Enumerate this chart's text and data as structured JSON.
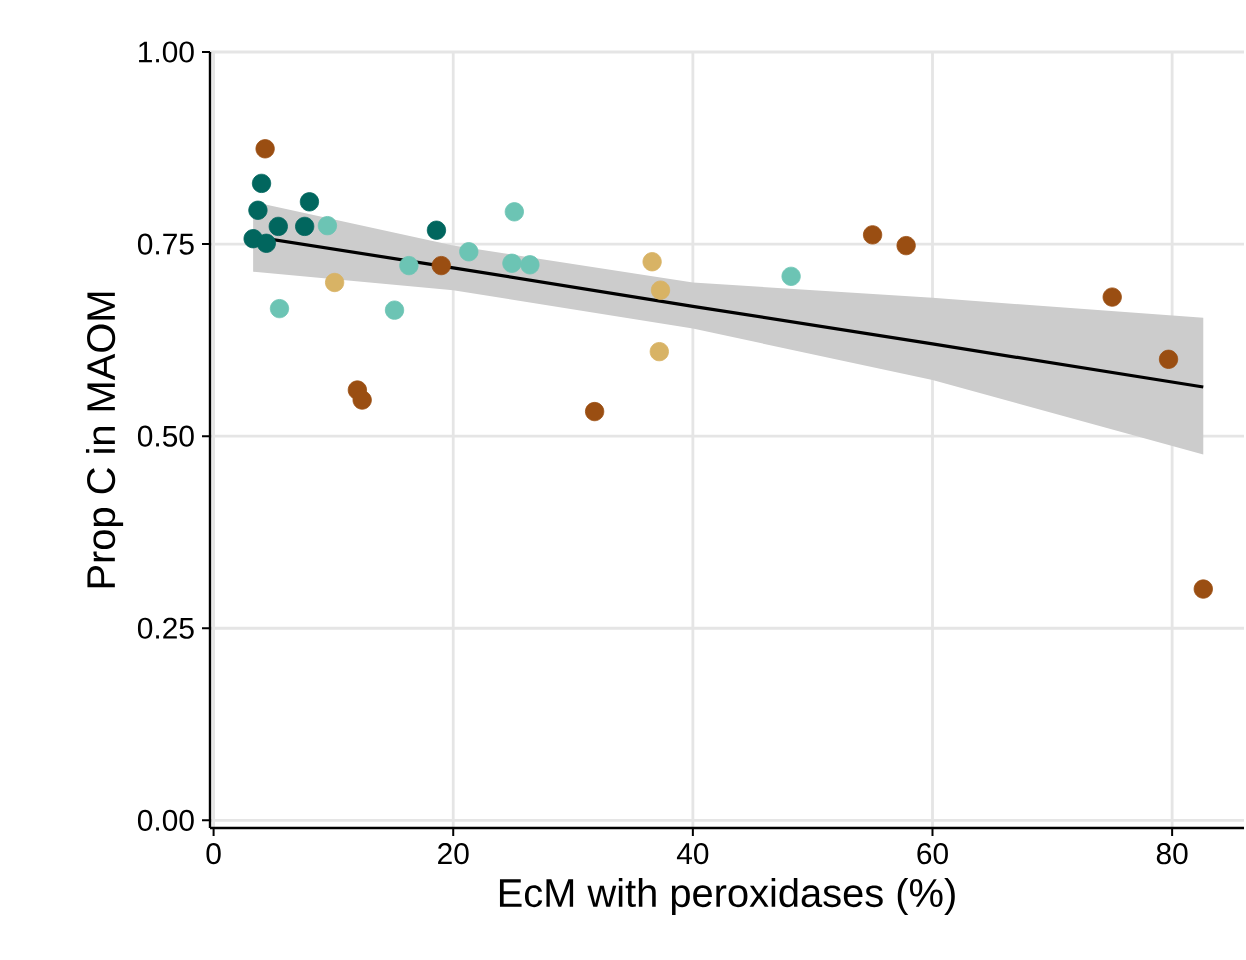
{
  "chart_data": {
    "type": "scatter",
    "xlabel": "EcM with peroxidases (%)",
    "ylabel": "Prop C in MAOM",
    "xlim": [
      -0.3,
      86
    ],
    "ylim": [
      -0.01,
      1.0
    ],
    "xticks": [
      0,
      20,
      40,
      60,
      80
    ],
    "yticks": [
      {
        "value": 0,
        "label": "0.00"
      },
      {
        "value": 0.25,
        "label": "0.25"
      },
      {
        "value": 0.5,
        "label": "0.50"
      },
      {
        "value": 0.75,
        "label": "0.75"
      },
      {
        "value": 1.0,
        "label": "1.00"
      }
    ],
    "grid": true,
    "series": [
      {
        "marker": "circle",
        "color": "#01665e",
        "x": [
          4.0,
          3.7,
          8.0,
          3.3,
          5.4,
          4.4,
          7.6,
          18.6
        ],
        "values": [
          0.829,
          0.794,
          0.805,
          0.757,
          0.773,
          0.751,
          0.773,
          0.768
        ]
      },
      {
        "marker": "circle",
        "color": "#6cc4b4",
        "x": [
          9.5,
          5.5,
          15.1,
          16.3,
          21.3,
          25.1,
          24.9,
          26.4,
          48.2
        ],
        "values": [
          0.774,
          0.666,
          0.664,
          0.722,
          0.74,
          0.792,
          0.725,
          0.723,
          0.708
        ]
      },
      {
        "marker": "circle",
        "color": "#d8b365",
        "x": [
          10.1,
          36.6,
          37.3,
          37.2
        ],
        "values": [
          0.7,
          0.727,
          0.69,
          0.61
        ]
      },
      {
        "marker": "circle",
        "color": "#9a4e12",
        "x": [
          4.3,
          12.0,
          12.4,
          19.0,
          31.8,
          55.0,
          57.8,
          75.0,
          79.7,
          82.6
        ],
        "values": [
          0.874,
          0.56,
          0.547,
          0.722,
          0.532,
          0.762,
          0.748,
          0.681,
          0.6,
          0.301
        ]
      },
      {
        "type": "line",
        "marker": "none",
        "color": "#000000",
        "x": [
          3.3,
          20,
          40,
          60,
          82.6
        ],
        "values": [
          0.76,
          0.719,
          0.669,
          0.62,
          0.564
        ],
        "lower": [
          0.714,
          0.69,
          0.64,
          0.573,
          0.476
        ],
        "upper": [
          0.805,
          0.748,
          0.7,
          0.68,
          0.654
        ]
      }
    ]
  }
}
